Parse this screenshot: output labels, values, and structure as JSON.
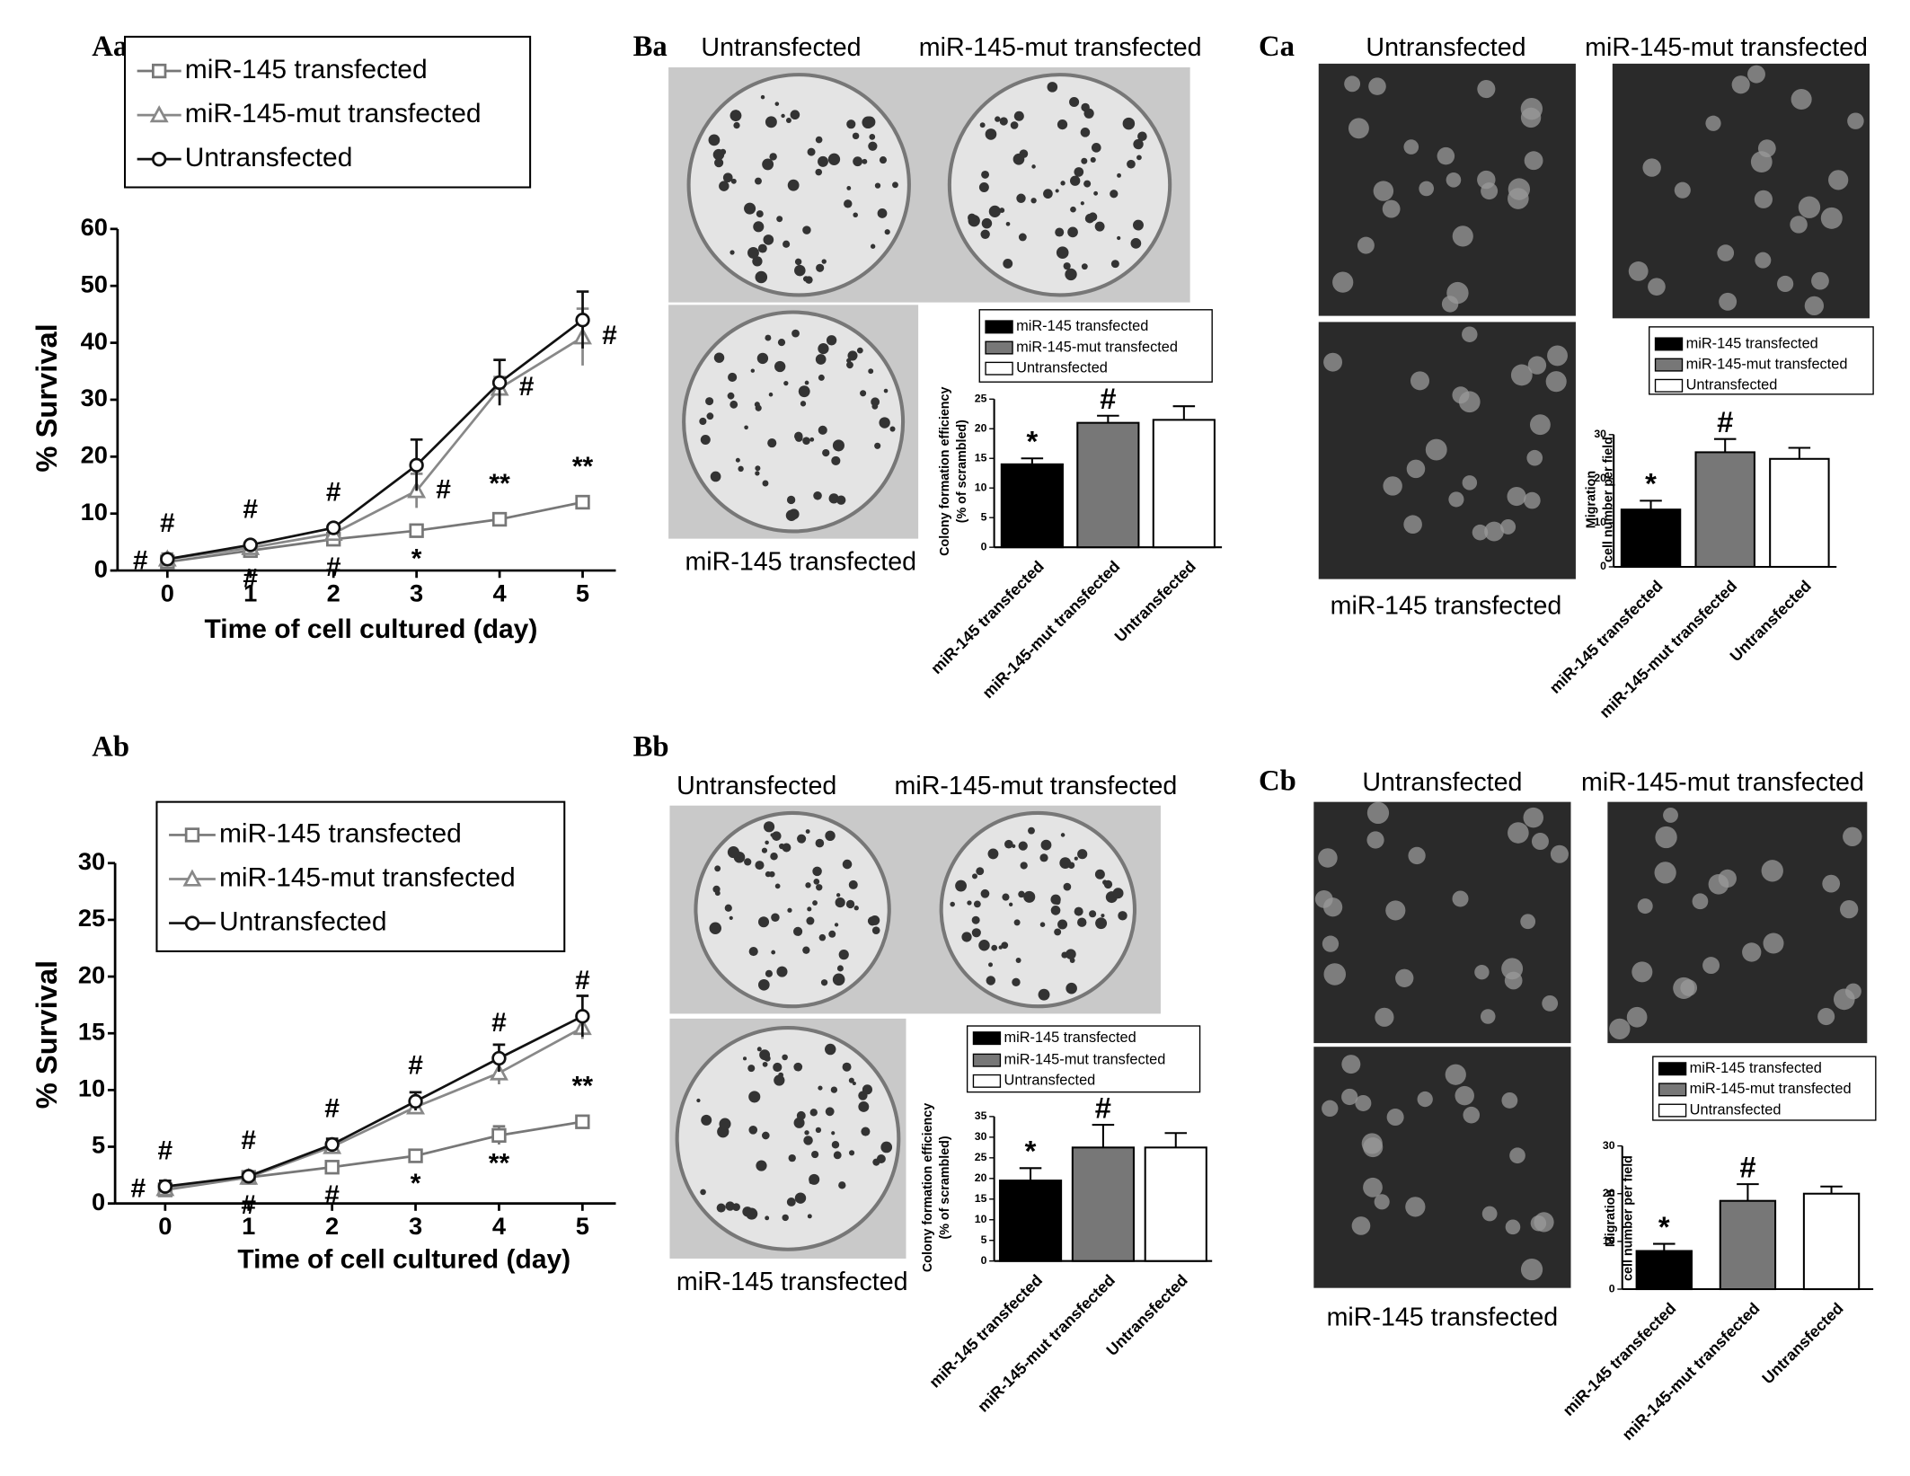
{
  "chart_data": [
    {
      "type": "line",
      "panel": "Aa",
      "x": [
        0,
        1,
        2,
        3,
        4,
        5
      ],
      "xlim": [
        -0.6,
        5.4
      ],
      "xticks": [
        0,
        1,
        2,
        3,
        4,
        5
      ],
      "ylim": [
        0,
        60
      ],
      "yticks": [
        0,
        10,
        20,
        30,
        40,
        50,
        60
      ],
      "x_label": "Time of cell cultured (day)",
      "y_label": "% Survival",
      "legend": "top-left",
      "series": [
        {
          "name": "miR-145 transfected",
          "color": "#777777",
          "marker": "square",
          "values": [
            1.5,
            3.5,
            5.5,
            7,
            9,
            12
          ],
          "errors": [
            0.8,
            1.2,
            0.5,
            0.5,
            0.5,
            0.6
          ],
          "annotations": [
            "#",
            "#",
            "#",
            "*",
            "**",
            "**"
          ],
          "annotation_sides": [
            "left",
            "below",
            "below",
            "below",
            "above",
            "above"
          ]
        },
        {
          "name": "miR-145-mut transfected",
          "color": "#888888",
          "marker": "triangle",
          "values": [
            2,
            4,
            6.5,
            14,
            32,
            41
          ],
          "errors": [
            1,
            1,
            0.5,
            3,
            2,
            5
          ],
          "annotations": [
            null,
            null,
            null,
            "#",
            "#",
            "#"
          ],
          "annotation_sides": [
            null,
            null,
            null,
            "right",
            "right",
            "right"
          ]
        },
        {
          "name": "Untransfected",
          "color": "#111111",
          "marker": "circle",
          "values": [
            2,
            4.5,
            7.5,
            18.5,
            33,
            44
          ],
          "errors": [
            0.5,
            0.5,
            0.5,
            4.5,
            4,
            5
          ],
          "annotations": [
            "#",
            "#",
            "#",
            null,
            null,
            null
          ],
          "annotation_sides": [
            "above",
            "above",
            "above",
            null,
            null,
            null
          ]
        }
      ]
    },
    {
      "type": "line",
      "panel": "Ab",
      "x": [
        0,
        1,
        2,
        3,
        4,
        5
      ],
      "xlim": [
        -0.6,
        5.4
      ],
      "xticks": [
        0,
        1,
        2,
        3,
        4,
        5
      ],
      "ylim": [
        0,
        30
      ],
      "yticks": [
        0,
        5,
        10,
        15,
        20,
        25,
        30
      ],
      "x_label": "Time of cell cultured (day)",
      "y_label": "% Survival",
      "legend": "top-left",
      "series": [
        {
          "name": "miR-145 transfected",
          "color": "#777777",
          "marker": "square",
          "values": [
            1.2,
            2.3,
            3.2,
            4.2,
            6,
            7.2
          ],
          "errors": [
            0.3,
            0.2,
            0.3,
            0.4,
            0.8,
            0.5
          ],
          "annotations": [
            "#",
            "#",
            "#",
            "*",
            "**",
            "**"
          ],
          "annotation_sides": [
            "left",
            "below",
            "below",
            "below",
            "below",
            "above"
          ]
        },
        {
          "name": "miR-145-mut transfected",
          "color": "#888888",
          "marker": "triangle",
          "values": [
            1.3,
            2.3,
            5,
            8.5,
            11.5,
            15.5
          ],
          "errors": [
            0.3,
            0.2,
            0.3,
            0.5,
            1,
            1
          ]
        },
        {
          "name": "Untransfected",
          "color": "#111111",
          "marker": "circle",
          "values": [
            1.5,
            2.4,
            5.2,
            9,
            12.8,
            16.5
          ],
          "errors": [
            0.5,
            0.2,
            0.5,
            0.8,
            1.2,
            1.8
          ],
          "annotations": [
            "#",
            "#",
            "#",
            "#",
            "#",
            "#"
          ],
          "annotation_sides": [
            "above",
            "above",
            "above",
            "above",
            "above",
            "above"
          ]
        }
      ]
    },
    {
      "type": "bar",
      "panel": "Ba",
      "image_labels": [
        "Untransfected",
        "miR-145-mut transfected",
        "miR-145 transfected"
      ],
      "categories": [
        "miR-145 transfected",
        "miR-145-mut transfected",
        "Untransfected"
      ],
      "values": [
        14,
        21,
        21.5
      ],
      "errors": [
        1,
        1.2,
        2.3
      ],
      "colors": [
        "#000000",
        "#777777",
        "#ffffff"
      ],
      "ylim": [
        0,
        25
      ],
      "yticks": [
        0,
        5,
        10,
        15,
        20,
        25
      ],
      "y_label": [
        "Colony formation efficiency",
        "(% of scrambled)"
      ],
      "annotations": [
        "*",
        "#",
        null
      ]
    },
    {
      "type": "bar",
      "panel": "Bb",
      "image_labels": [
        "Untransfected",
        "miR-145-mut transfected",
        "miR-145 transfected"
      ],
      "categories": [
        "miR-145 transfected",
        "miR-145-mut transfected",
        "Untransfected"
      ],
      "values": [
        19.5,
        27.5,
        27.5
      ],
      "errors": [
        3,
        5.5,
        3.5
      ],
      "colors": [
        "#000000",
        "#777777",
        "#ffffff"
      ],
      "ylim": [
        0,
        35
      ],
      "yticks": [
        0,
        5,
        10,
        15,
        20,
        25,
        30,
        35
      ],
      "y_label": [
        "Colony formation efficiency",
        "(% of scrambled)"
      ],
      "annotations": [
        "*",
        "#",
        null
      ]
    },
    {
      "type": "bar",
      "panel": "Ca",
      "image_labels": [
        "Untransfected",
        "miR-145-mut transfected",
        "miR-145 transfected"
      ],
      "categories": [
        "miR-145 transfected",
        "miR-145-mut transfected",
        "Untransfected"
      ],
      "values": [
        13,
        26,
        24.5
      ],
      "errors": [
        2,
        3,
        2.5
      ],
      "colors": [
        "#000000",
        "#777777",
        "#ffffff"
      ],
      "ylim": [
        0,
        30
      ],
      "yticks": [
        0,
        10,
        20,
        30
      ],
      "y_label": [
        "Migration",
        "cell number per field"
      ],
      "annotations": [
        "*",
        "#",
        null
      ]
    },
    {
      "type": "bar",
      "panel": "Cb",
      "image_labels": [
        "Untransfected",
        "miR-145-mut transfected",
        "miR-145 transfected"
      ],
      "categories": [
        "miR-145 transfected",
        "miR-145-mut transfected",
        "Untransfected"
      ],
      "values": [
        8,
        18.5,
        20
      ],
      "errors": [
        1.5,
        3.5,
        1.5
      ],
      "colors": [
        "#000000",
        "#777777",
        "#ffffff"
      ],
      "ylim": [
        0,
        30
      ],
      "yticks": [
        0,
        10,
        20,
        30
      ],
      "y_label": [
        "Migration",
        "cell number per field"
      ],
      "annotations": [
        "*",
        "#",
        null
      ]
    }
  ]
}
